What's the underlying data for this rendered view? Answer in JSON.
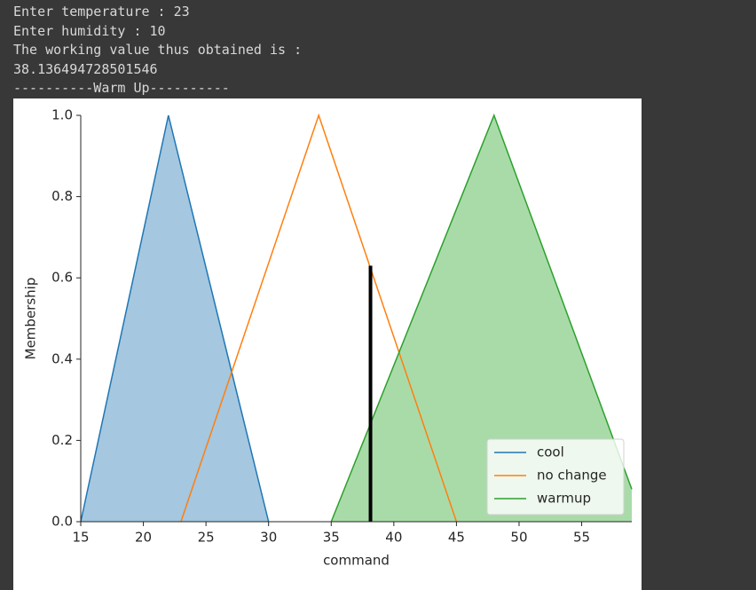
{
  "console": [
    "Enter temperature : 23",
    "Enter humidity : 10",
    "The working value thus obtained is :",
    "38.136494728501546",
    "----------Warm Up----------"
  ],
  "chart_data": {
    "type": "line",
    "xlabel": "command",
    "ylabel": "Membership",
    "series": [
      {
        "name": "cool",
        "color": "#1f77b4",
        "fill": true,
        "fill_color": "#a5c7e0",
        "x": [
          15,
          22,
          30
        ],
        "values": [
          0,
          1,
          0
        ]
      },
      {
        "name": "no change",
        "color": "#ff7f0e",
        "fill": false,
        "x": [
          23,
          34,
          45
        ],
        "values": [
          0,
          1,
          0
        ]
      },
      {
        "name": "warmup",
        "color": "#2ca02c",
        "fill": true,
        "fill_color": "#a9dba9",
        "x": [
          35,
          48,
          59
        ],
        "values": [
          0,
          1,
          0.08
        ]
      }
    ],
    "marker": {
      "x": 38.136494728501546,
      "value": 0.63,
      "color": "#000000"
    },
    "xlim": [
      15,
      59
    ],
    "xticks": [
      15,
      20,
      25,
      30,
      35,
      40,
      45,
      50,
      55
    ],
    "ylim": [
      0,
      1
    ],
    "yticks": [
      {
        "value": 0,
        "label": "0.0"
      },
      0.2,
      0.4,
      0.6,
      0.8,
      {
        "value": 1,
        "label": "1.0"
      }
    ],
    "legend": "lower right"
  }
}
